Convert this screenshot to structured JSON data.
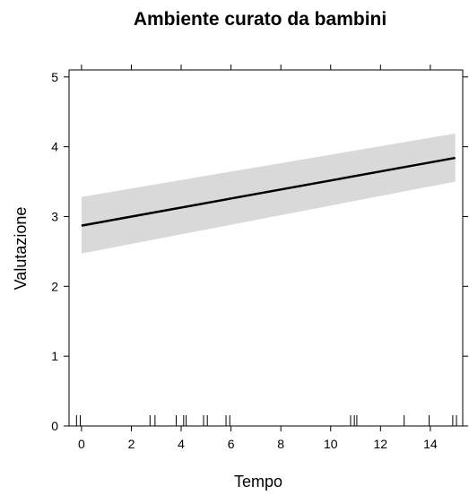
{
  "chart_data": {
    "type": "line",
    "title": "Ambiente curato da bambini",
    "xlabel": "Tempo",
    "ylabel": "Valutazione",
    "xlim": [
      -0.5,
      15.3
    ],
    "ylim": [
      0,
      5.1
    ],
    "xticks": [
      0,
      2,
      4,
      6,
      8,
      10,
      12,
      14
    ],
    "yticks": [
      0,
      1,
      2,
      3,
      4,
      5
    ],
    "grid": false,
    "series": [
      {
        "x": [
          0,
          15
        ],
        "y": [
          2.87,
          3.84
        ],
        "ci_lower": [
          2.47,
          3.5
        ],
        "ci_upper": [
          3.28,
          4.19
        ]
      }
    ],
    "rug_x": [
      -0.2,
      -0.05,
      2.75,
      2.95,
      3.8,
      4.1,
      4.2,
      4.9,
      5.05,
      5.8,
      5.95,
      10.8,
      10.95,
      11.05,
      12.95,
      13.95,
      14.9,
      15.05
    ]
  }
}
